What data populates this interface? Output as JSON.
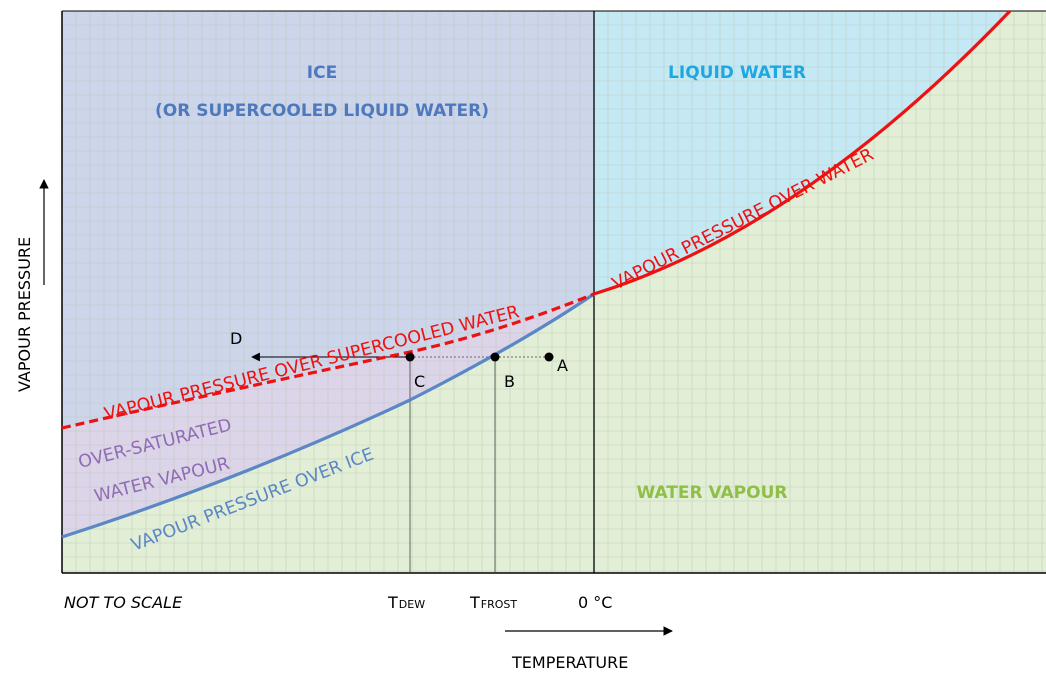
{
  "regions": {
    "ice": "ICE",
    "ice_sub": "(OR SUPERCOOLED LIQUID WATER)",
    "liquid": "LIQUID WATER",
    "vapour": "WATER VAPOUR",
    "oversat_1": "OVER-SATURATED",
    "oversat_2": "WATER VAPOUR"
  },
  "curves": {
    "water": "VAPOUR PRESSURE OVER WATER",
    "supercooled": "VAPOUR PRESSURE OVER SUPERCOOLED WATER",
    "ice": "VAPOUR PRESSURE OVER ICE"
  },
  "points": {
    "a": "A",
    "b": "B",
    "c": "C",
    "d": "D"
  },
  "ticks": {
    "tdew_main": "T",
    "tdew_sub": "DEW",
    "tfrost_main": "T",
    "tfrost_sub": "FROST",
    "zero": "0 °C"
  },
  "axes": {
    "x": "TEMPERATURE",
    "y": "VAPOUR PRESSURE"
  },
  "note": "NOT TO SCALE",
  "colors": {
    "ice_region": "#ccd5ea",
    "liquid_region": "#c5e8f5",
    "vapour_region": "#e2efd6",
    "oversat_region": "#dcd4e8",
    "grid": "#b8c4b0",
    "water_curve": "#ee1111",
    "ice_curve": "#5b87c5",
    "ice_text": "#4f79bd",
    "liquid_text": "#1fa8e0",
    "vapour_text": "#8fbf48",
    "oversat_text": "#8f6cb5"
  }
}
